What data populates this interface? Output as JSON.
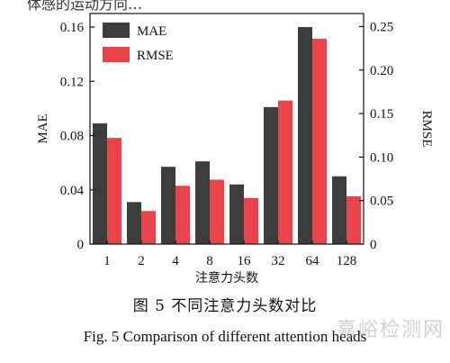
{
  "page": {
    "top_fragment": "体感的运动方向…",
    "caption_cn": "图 5 不同注意力头数对比",
    "caption_en": "Fig. 5 Comparison of different attention heads",
    "watermark": "嘉峪检测网"
  },
  "chart_data": {
    "type": "bar",
    "xlabel": "注意力头数",
    "ylabel_left": "MAE",
    "ylabel_right": "RMSE",
    "categories": [
      "1",
      "2",
      "4",
      "8",
      "16",
      "32",
      "64",
      "128"
    ],
    "ylim_left": [
      0,
      0.17
    ],
    "ylim_right": [
      0,
      0.265
    ],
    "yticks_left": [
      "0",
      "0.04",
      "0.08",
      "0.12",
      "0.16"
    ],
    "yticks_right": [
      "0",
      "0.05",
      "0.10",
      "0.15",
      "0.20",
      "0.25"
    ],
    "legend_position": "top-left",
    "grid": false,
    "series": [
      {
        "name": "MAE",
        "axis": "left",
        "color": "#3d3d3d",
        "values": [
          0.089,
          0.031,
          0.057,
          0.061,
          0.044,
          0.101,
          0.16,
          0.05
        ]
      },
      {
        "name": "RMSE",
        "axis": "right",
        "color": "#e8444a",
        "values": [
          0.122,
          0.038,
          0.067,
          0.074,
          0.053,
          0.165,
          0.236,
          0.055
        ]
      }
    ]
  }
}
